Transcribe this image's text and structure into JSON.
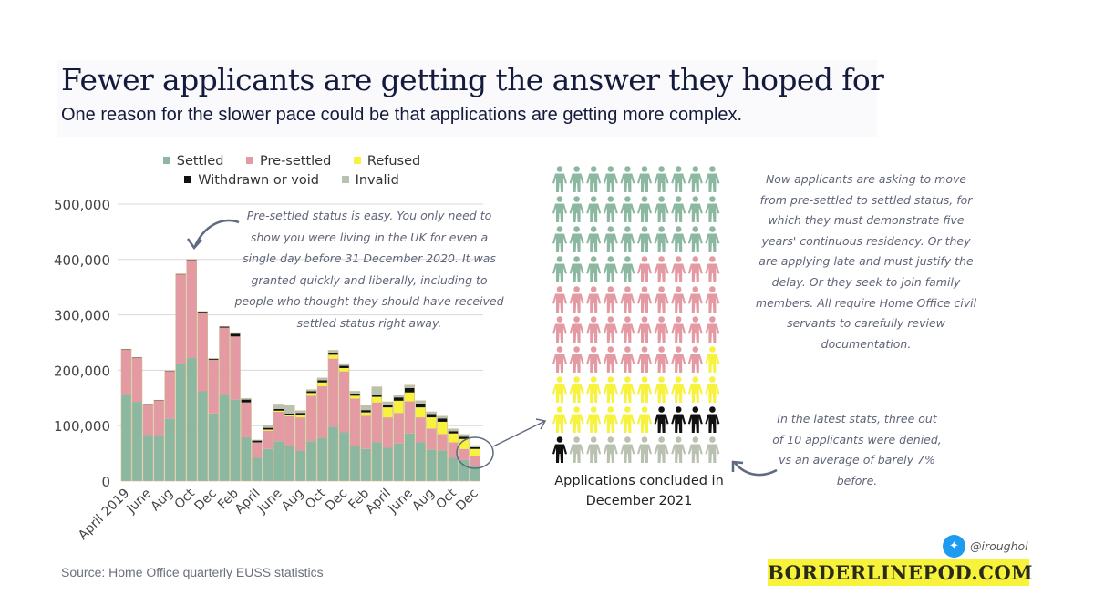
{
  "header": {
    "title": "Fewer applicants are getting the answer they hoped for",
    "subtitle": "One reason for the slower pace could be that applications are getting more complex."
  },
  "chart_data": {
    "type": "bar",
    "stacked": true,
    "title": "",
    "xlabel": "",
    "ylabel": "",
    "ylim": [
      0,
      500000
    ],
    "yticks": [
      0,
      100000,
      200000,
      300000,
      400000,
      500000
    ],
    "ytick_labels": [
      "0",
      "100,000",
      "200,000",
      "300,000",
      "400,000",
      "500,000"
    ],
    "grid": true,
    "legend_position": "top",
    "categories": [
      "April 2019",
      "May 2019",
      "June 2019",
      "July 2019",
      "Aug 2019",
      "Sep 2019",
      "Oct 2019",
      "Nov 2019",
      "Dec 2019",
      "Jan 2020",
      "Feb 2020",
      "Mar 2020",
      "April 2020",
      "May 2020",
      "June 2020",
      "July 2020",
      "Aug 2020",
      "Sep 2020",
      "Oct 2020",
      "Nov 2020",
      "Dec 2020",
      "Jan 2021",
      "Feb 2021",
      "Mar 2021",
      "April 2021",
      "May 2021",
      "June 2021",
      "July 2021",
      "Aug 2021",
      "Sep 2021",
      "Oct 2021",
      "Nov 2021",
      "Dec 2021"
    ],
    "xtick_labels": [
      "April 2019",
      "",
      "June",
      "",
      "Aug",
      "",
      "Oct",
      "",
      "Dec",
      "",
      "Feb",
      "",
      "April",
      "",
      "June",
      "",
      "Aug",
      "",
      "Oct",
      "",
      "Dec",
      "",
      "Feb",
      "",
      "April",
      "",
      "June",
      "",
      "Aug",
      "",
      "Oct",
      "",
      "Dec"
    ],
    "series": [
      {
        "name": "Settled",
        "color": "#8cb8a2",
        "values": [
          157000,
          143000,
          83000,
          83000,
          113000,
          212000,
          222000,
          162000,
          122000,
          157000,
          147000,
          79000,
          42000,
          58000,
          72000,
          64000,
          55000,
          72000,
          78000,
          98000,
          88000,
          64000,
          58000,
          70000,
          60000,
          68000,
          86000,
          70000,
          57000,
          55000,
          42000,
          38000,
          28000
        ]
      },
      {
        "name": "Pre-settled",
        "color": "#e39aa2",
        "values": [
          80000,
          79000,
          55000,
          62000,
          85000,
          161000,
          177000,
          142000,
          97000,
          120000,
          114000,
          63000,
          28000,
          33000,
          53000,
          53000,
          60000,
          82000,
          93000,
          123000,
          110000,
          85000,
          60000,
          72000,
          55000,
          55000,
          58000,
          45000,
          38000,
          30000,
          28000,
          20000,
          18000
        ]
      },
      {
        "name": "Refused",
        "color": "#f6f23d",
        "values": [
          0,
          0,
          0,
          0,
          0,
          0,
          0,
          0,
          0,
          0,
          0,
          0,
          0,
          2000,
          2000,
          2000,
          5000,
          5000,
          7000,
          7000,
          6000,
          5000,
          6000,
          10000,
          18000,
          22000,
          16000,
          18000,
          20000,
          22000,
          16000,
          18000,
          12000
        ]
      },
      {
        "name": "Withdrawn or void",
        "color": "#111111",
        "values": [
          1000,
          1000,
          1000,
          1000,
          1000,
          1000,
          1000,
          2000,
          2000,
          2000,
          5000,
          5000,
          3000,
          3000,
          3000,
          3000,
          3000,
          3000,
          4000,
          4000,
          4000,
          4000,
          4000,
          4000,
          5000,
          6000,
          8000,
          7000,
          6000,
          6000,
          4000,
          4000,
          3000
        ]
      },
      {
        "name": "Invalid",
        "color": "#b9c1b1",
        "values": [
          0,
          0,
          0,
          0,
          0,
          0,
          0,
          0,
          0,
          0,
          2000,
          2000,
          1000,
          4000,
          9000,
          15000,
          4000,
          3000,
          4000,
          4000,
          4000,
          4000,
          8000,
          14000,
          5000,
          4000,
          5000,
          5000,
          4000,
          4000,
          4000,
          4000,
          3000
        ]
      }
    ]
  },
  "legend": [
    {
      "label": "Settled",
      "color": "#8cb8a2"
    },
    {
      "label": "Pre-settled",
      "color": "#e39aa2"
    },
    {
      "label": "Refused",
      "color": "#f6f23d"
    },
    {
      "label": "Withdrawn or void",
      "color": "#111111"
    },
    {
      "label": "Invalid",
      "color": "#b9c1b1"
    }
  ],
  "annotations": {
    "presettled": "Pre-settled status is easy. You only need to show you were living in the UK for even a single day before 31 December 2020. It was granted quickly and liberally, including to people who thought they should have received settled status right away.",
    "complexity": "Now applicants are asking to move from pre-settled to settled status, for which they must demonstrate five years' continuous residency. Or they are applying late and must justify the delay. Or they seek to join family members. All require Home Office civil servants to carefully review documentation.",
    "denied": "In the latest stats, three out of 10 applicants were denied, vs an average of barely 7% before."
  },
  "icon_chart": {
    "caption": "Applications concluded in December 2021",
    "counts": [
      {
        "label": "Settled",
        "count": 35,
        "color": "#8cb8a2"
      },
      {
        "label": "Pre-settled",
        "count": 34,
        "color": "#e39aa2"
      },
      {
        "label": "Refused",
        "count": 17,
        "color": "#f6f23d"
      },
      {
        "label": "Withdrawn or void",
        "count": 5,
        "color": "#111111"
      },
      {
        "label": "Invalid",
        "count": 9,
        "color": "#b9c1b1"
      }
    ]
  },
  "footer": {
    "source": "Source: Home Office quarterly EUSS statistics",
    "twitter_icon": "twitter-bird-icon",
    "twitter_handle": "@iroughol",
    "brand": "BORDERLINEPOD.COM",
    "brand_color": "#f7f23a"
  }
}
